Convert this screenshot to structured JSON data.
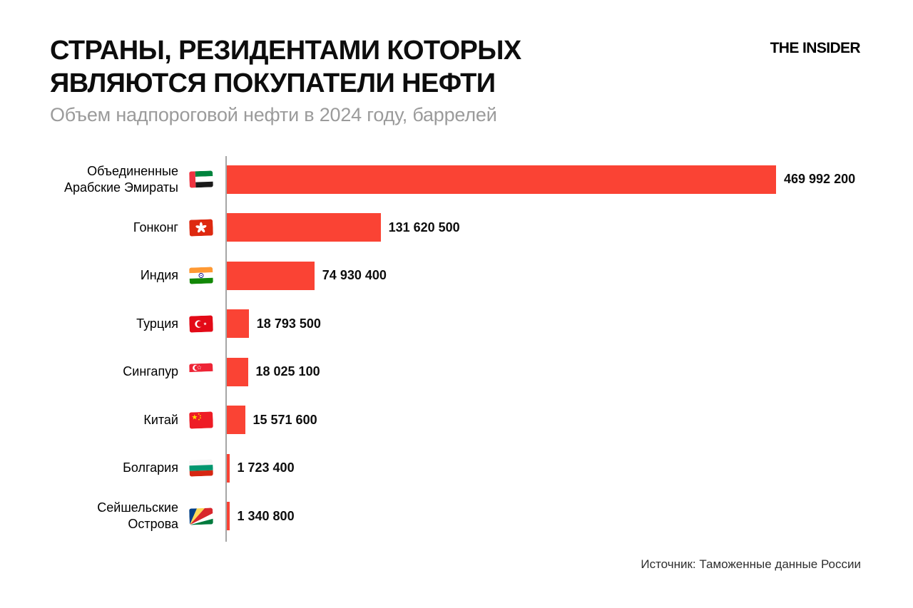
{
  "header": {
    "title": "СТРАНЫ, РЕЗИДЕНТАМИ КОТОРЫХ\nЯВЛЯЮТСЯ ПОКУПАТЕЛИ НЕФТИ",
    "subtitle": "Объем надпороговой нефти в 2024 году, баррелей",
    "logo": "THE INSIDER"
  },
  "footer": {
    "source": "Источник: Таможенные данные России"
  },
  "colors": {
    "bar": "#fa4334",
    "axis": "#a6a6a6",
    "title": "#0d0d0d",
    "subtitle": "#9b9b9b"
  },
  "chart_data": {
    "type": "bar",
    "orientation": "horizontal",
    "title": "СТРАНЫ, РЕЗИДЕНТАМИ КОТОРЫХ ЯВЛЯЮТСЯ ПОКУПАТЕЛИ НЕФТИ",
    "subtitle": "Объем надпороговой нефти в 2024 году, баррелей",
    "xlabel": "",
    "ylabel": "",
    "xlim": [
      0,
      469992200
    ],
    "grid": false,
    "legend": "none",
    "value_format": "space-separated thousands",
    "categories": [
      "Объединенные Арабские Эмираты",
      "Гонконг",
      "Индия",
      "Турция",
      "Сингапур",
      "Китай",
      "Болгария",
      "Сейшельские Острова"
    ],
    "values": [
      469992200,
      131620500,
      74930400,
      18793500,
      18025100,
      15571600,
      1723400,
      1340800
    ],
    "rows": [
      {
        "label": "Объединенные\nАрабские Эмираты",
        "flag": "uae",
        "value": 469992200,
        "value_label": "469 992 200"
      },
      {
        "label": "Гонконг",
        "flag": "hong-kong",
        "value": 131620500,
        "value_label": "131 620 500"
      },
      {
        "label": "Индия",
        "flag": "india",
        "value": 74930400,
        "value_label": "74 930 400"
      },
      {
        "label": "Турция",
        "flag": "turkey",
        "value": 18793500,
        "value_label": "18 793 500"
      },
      {
        "label": "Сингапур",
        "flag": "singapore",
        "value": 18025100,
        "value_label": "18 025 100"
      },
      {
        "label": "Китай",
        "flag": "china",
        "value": 15571600,
        "value_label": "15 571 600"
      },
      {
        "label": "Болгария",
        "flag": "bulgaria",
        "value": 1723400,
        "value_label": "1 723 400"
      },
      {
        "label": "Сейшельские\nОстрова",
        "flag": "seychelles",
        "value": 1340800,
        "value_label": "1 340 800"
      }
    ]
  }
}
